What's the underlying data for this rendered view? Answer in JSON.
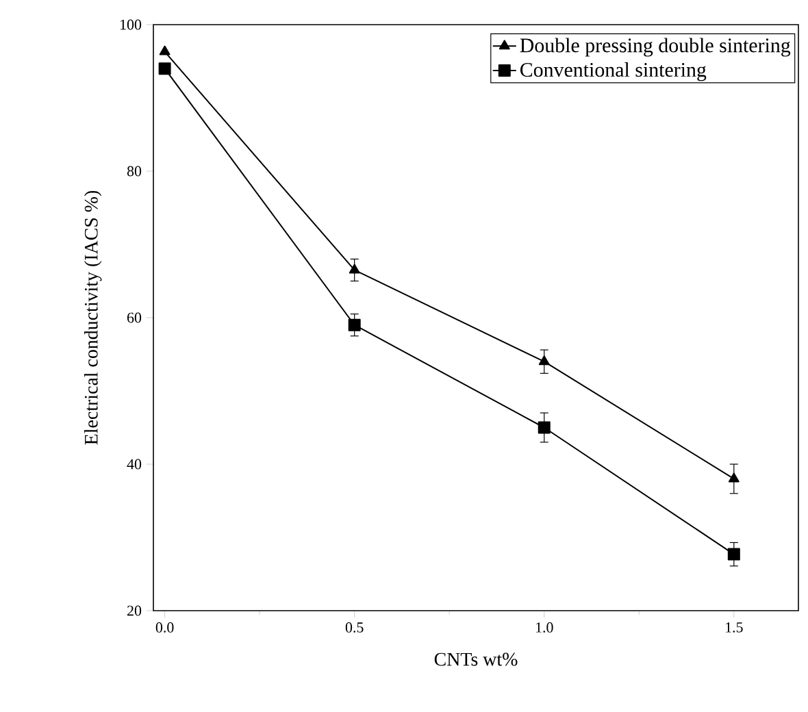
{
  "chart_data": {
    "type": "line",
    "xlabel": "CNTs wt%",
    "ylabel": "Electrical conductivity (IACS %)",
    "x": [
      0.0,
      0.5,
      1.0,
      1.5
    ],
    "series": [
      {
        "name": "Double pressing double sintering",
        "color": "#000000",
        "marker": "triangle",
        "values": [
          96.3,
          66.5,
          54,
          38
        ],
        "errors": [
          null,
          1.5,
          1.6,
          2
        ]
      },
      {
        "name": "Conventional sintering",
        "color": "#000000",
        "marker": "square",
        "values": [
          94,
          59,
          45,
          27.7
        ],
        "errors": [
          null,
          1.5,
          2,
          1.6
        ]
      }
    ],
    "xlim": [
      -0.03,
      1.67
    ],
    "ylim": [
      20,
      100
    ],
    "xticks": [
      {
        "value": 0.0,
        "label": "0.0"
      },
      {
        "value": 0.5,
        "label": "0.5"
      },
      {
        "value": 1.0,
        "label": "1.0"
      },
      {
        "value": 1.5,
        "label": "1.5"
      }
    ],
    "yticks": [
      20,
      40,
      60,
      80,
      100
    ],
    "grid": false,
    "legend": "top right",
    "line_style": "solid"
  }
}
